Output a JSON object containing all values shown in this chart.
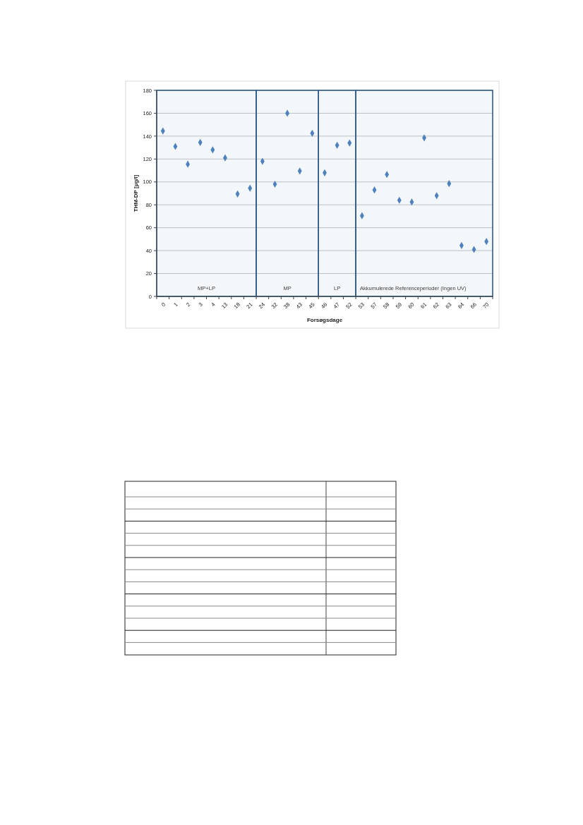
{
  "chart_data": {
    "type": "scatter",
    "xlabel": "Forsøgsdage",
    "ylabel": "THM-DP [µg/l]",
    "categories": [
      "0",
      "1",
      "2",
      "3",
      "4",
      "13",
      "18",
      "21",
      "24",
      "32",
      "38",
      "43",
      "45",
      "46",
      "47",
      "52",
      "53",
      "57",
      "58",
      "59",
      "60",
      "61",
      "62",
      "63",
      "64",
      "66",
      "70"
    ],
    "values": [
      144.5,
      131,
      115.5,
      134.5,
      128,
      121,
      89.5,
      94.5,
      118,
      98,
      160,
      109.5,
      142.5,
      108,
      132,
      134,
      70.5,
      93,
      106.5,
      84,
      82.5,
      138.5,
      88,
      98.5,
      44.5,
      41,
      48
    ],
    "color": "#4f81bd",
    "marker": "diamond",
    "grid": "y",
    "legend": false,
    "ylim": [
      0,
      180
    ],
    "yticks": [
      0,
      20,
      40,
      60,
      80,
      100,
      120,
      140,
      160,
      180
    ],
    "bands": [
      {
        "axis": "x",
        "from": "0",
        "to": "21",
        "label": "MP+LP",
        "color": "#2f5a8c"
      },
      {
        "axis": "x",
        "from": "24",
        "to": "45",
        "label": "MP",
        "color": "#2f5a8c"
      },
      {
        "axis": "x",
        "from": "46",
        "to": "52",
        "label": "LP",
        "color": "#2f5a8c"
      },
      {
        "axis": "x",
        "from": "53",
        "to": "70",
        "label": "Akkumulerede Referenceperioder (Ingen UV)",
        "color": "#2f5a8c"
      }
    ]
  }
}
